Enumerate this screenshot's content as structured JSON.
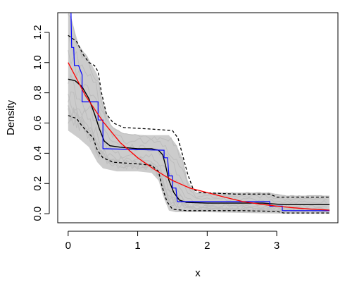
{
  "chart_data": {
    "type": "line",
    "title": "",
    "xlabel": "x",
    "ylabel": "Density",
    "xlim": [
      -0.15,
      3.88
    ],
    "ylim": [
      -0.06,
      1.33
    ],
    "grid": false,
    "legend": "none",
    "x_ticks": [
      0,
      1,
      2,
      3
    ],
    "x_tick_labels": [
      "0",
      "1",
      "2",
      "3"
    ],
    "y_ticks": [
      0.0,
      0.2,
      0.4,
      0.6,
      0.8,
      1.0,
      1.2
    ],
    "y_tick_labels": [
      "0.0",
      "0.2",
      "0.4",
      "0.6",
      "0.8",
      "1.0",
      "1.2"
    ],
    "colors": {
      "simulations": "#cccccc",
      "mean": "#000000",
      "bands": "#000000",
      "empirical": "#0000ff",
      "theoretical": "#ff0000",
      "axis": "#000000"
    },
    "band_region": {
      "upper": [
        [
          0,
          1.36
        ],
        [
          0.15,
          1.12
        ],
        [
          0.3,
          1.02
        ],
        [
          0.42,
          0.92
        ],
        [
          0.5,
          0.74
        ],
        [
          0.62,
          0.58
        ],
        [
          0.8,
          0.53
        ],
        [
          1.1,
          0.52
        ],
        [
          1.45,
          0.52
        ],
        [
          1.55,
          0.46
        ],
        [
          1.65,
          0.36
        ],
        [
          1.72,
          0.22
        ],
        [
          1.82,
          0.14
        ],
        [
          2.3,
          0.14
        ],
        [
          2.9,
          0.14
        ],
        [
          3.1,
          0.12
        ],
        [
          3.76,
          0.12
        ]
      ],
      "lower": [
        [
          0,
          0.55
        ],
        [
          0.15,
          0.5
        ],
        [
          0.3,
          0.44
        ],
        [
          0.42,
          0.34
        ],
        [
          0.5,
          0.3
        ],
        [
          0.7,
          0.28
        ],
        [
          1.0,
          0.28
        ],
        [
          1.2,
          0.27
        ],
        [
          1.3,
          0.22
        ],
        [
          1.38,
          0.1
        ],
        [
          1.45,
          0.02
        ],
        [
          1.55,
          0.01
        ],
        [
          2.0,
          0.01
        ],
        [
          3.1,
          0.0
        ],
        [
          3.76,
          0.0
        ]
      ]
    },
    "series": [
      {
        "values": [
          [
            0,
            0.89
          ],
          [
            0.1,
            0.88
          ],
          [
            0.2,
            0.84
          ],
          [
            0.3,
            0.76
          ],
          [
            0.38,
            0.66
          ],
          [
            0.45,
            0.56
          ],
          [
            0.52,
            0.48
          ],
          [
            0.6,
            0.45
          ],
          [
            0.75,
            0.44
          ],
          [
            1.0,
            0.43
          ],
          [
            1.2,
            0.43
          ],
          [
            1.3,
            0.42
          ],
          [
            1.36,
            0.39
          ],
          [
            1.4,
            0.32
          ],
          [
            1.45,
            0.22
          ],
          [
            1.52,
            0.14
          ],
          [
            1.6,
            0.09
          ],
          [
            1.7,
            0.075
          ],
          [
            2.0,
            0.07
          ],
          [
            2.8,
            0.07
          ],
          [
            2.95,
            0.065
          ],
          [
            3.1,
            0.06
          ],
          [
            3.76,
            0.06
          ]
        ]
      },
      {
        "values": [
          [
            0,
            1.18
          ],
          [
            0.12,
            1.14
          ],
          [
            0.22,
            1.05
          ],
          [
            0.3,
            1.0
          ],
          [
            0.38,
            0.98
          ],
          [
            0.43,
            0.94
          ],
          [
            0.48,
            0.8
          ],
          [
            0.55,
            0.66
          ],
          [
            0.65,
            0.6
          ],
          [
            0.8,
            0.57
          ],
          [
            1.2,
            0.56
          ],
          [
            1.5,
            0.55
          ],
          [
            1.58,
            0.5
          ],
          [
            1.65,
            0.38
          ],
          [
            1.72,
            0.26
          ],
          [
            1.8,
            0.16
          ],
          [
            1.9,
            0.14
          ],
          [
            2.4,
            0.13
          ],
          [
            2.9,
            0.13
          ],
          [
            3.0,
            0.11
          ],
          [
            3.76,
            0.11
          ]
        ]
      },
      {
        "values": [
          [
            0,
            0.65
          ],
          [
            0.12,
            0.63
          ],
          [
            0.2,
            0.58
          ],
          [
            0.28,
            0.54
          ],
          [
            0.36,
            0.5
          ],
          [
            0.42,
            0.42
          ],
          [
            0.5,
            0.37
          ],
          [
            0.65,
            0.34
          ],
          [
            1.0,
            0.33
          ],
          [
            1.2,
            0.32
          ],
          [
            1.3,
            0.28
          ],
          [
            1.35,
            0.18
          ],
          [
            1.42,
            0.08
          ],
          [
            1.5,
            0.03
          ],
          [
            1.7,
            0.02
          ],
          [
            2.5,
            0.02
          ],
          [
            3.0,
            0.015
          ],
          [
            3.1,
            0.005
          ],
          [
            3.76,
            0.005
          ]
        ]
      },
      {
        "values": [
          [
            0,
            1.34
          ],
          [
            0.04,
            1.34
          ],
          [
            0.05,
            1.1
          ],
          [
            0.08,
            1.1
          ],
          [
            0.09,
            0.98
          ],
          [
            0.15,
            0.98
          ],
          [
            0.2,
            0.92
          ],
          [
            0.2,
            0.74
          ],
          [
            0.43,
            0.74
          ],
          [
            0.43,
            0.62
          ],
          [
            0.5,
            0.62
          ],
          [
            0.5,
            0.43
          ],
          [
            1.38,
            0.42
          ],
          [
            1.38,
            0.37
          ],
          [
            1.43,
            0.37
          ],
          [
            1.45,
            0.25
          ],
          [
            1.5,
            0.25
          ],
          [
            1.5,
            0.17
          ],
          [
            1.55,
            0.17
          ],
          [
            1.57,
            0.08
          ],
          [
            2.9,
            0.08
          ],
          [
            2.9,
            0.05
          ],
          [
            3.08,
            0.05
          ],
          [
            3.08,
            0.02
          ],
          [
            3.76,
            0.02
          ]
        ]
      },
      {
        "values": [
          [
            0,
            1.0
          ],
          [
            0.25,
            0.78
          ],
          [
            0.5,
            0.61
          ],
          [
            0.75,
            0.47
          ],
          [
            1.0,
            0.37
          ],
          [
            1.25,
            0.29
          ],
          [
            1.5,
            0.22
          ],
          [
            1.75,
            0.17
          ],
          [
            2.0,
            0.14
          ],
          [
            2.25,
            0.11
          ],
          [
            2.5,
            0.082
          ],
          [
            2.75,
            0.064
          ],
          [
            3.0,
            0.05
          ],
          [
            3.25,
            0.039
          ],
          [
            3.5,
            0.03
          ],
          [
            3.76,
            0.024
          ]
        ]
      }
    ]
  }
}
